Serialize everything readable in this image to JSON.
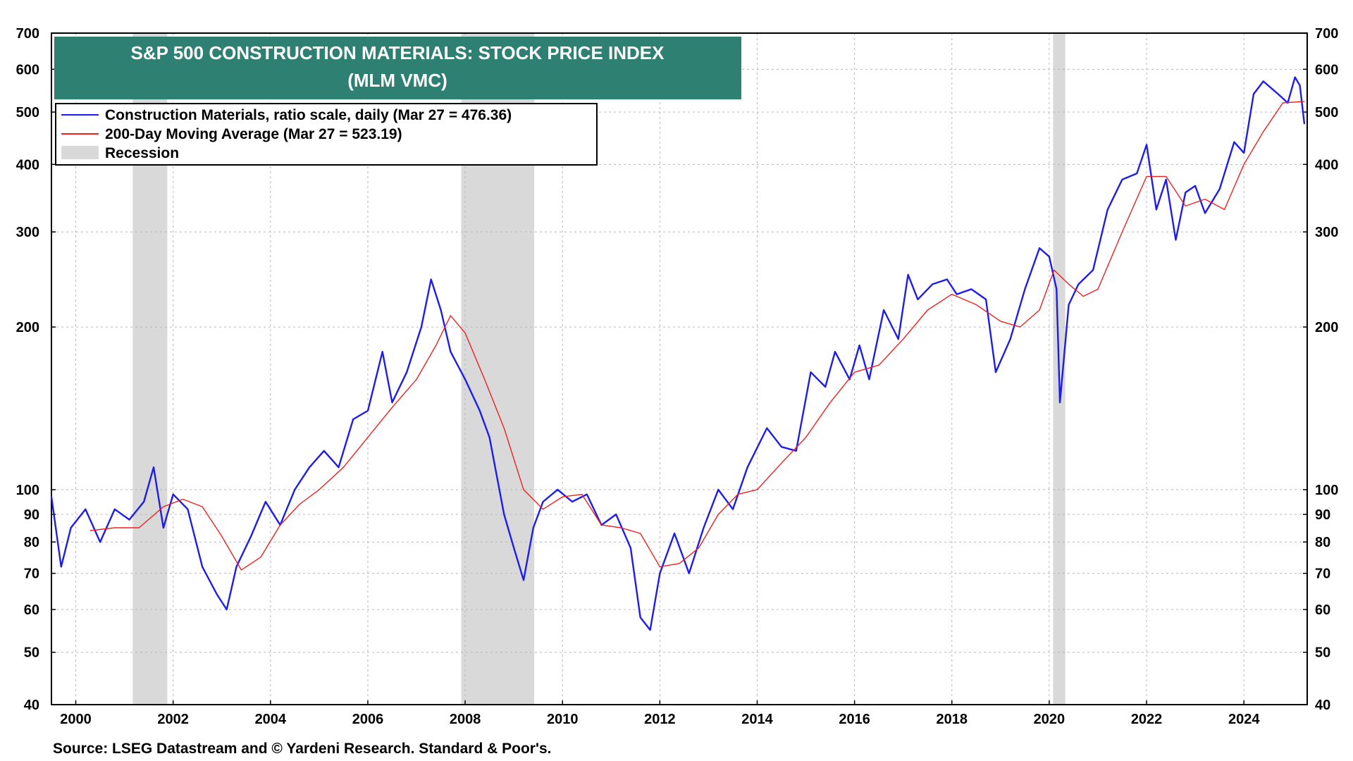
{
  "chart_data": {
    "type": "line",
    "title_line1": "S&P 500 CONSTRUCTION MATERIALS: STOCK PRICE INDEX",
    "title_line2": "(MLM VMC)",
    "title_bg_color": "#2e8072",
    "scale": "log",
    "ylim": [
      40,
      700
    ],
    "xlim": [
      1999.5,
      2025.3
    ],
    "y_ticks": [
      40,
      50,
      60,
      70,
      80,
      90,
      100,
      200,
      300,
      400,
      500,
      600,
      700
    ],
    "x_ticks": [
      2000,
      2002,
      2004,
      2006,
      2008,
      2010,
      2012,
      2014,
      2016,
      2018,
      2020,
      2022,
      2024
    ],
    "grid": true,
    "legend_position": "top-left",
    "legend": [
      {
        "label": "Construction Materials, ratio scale, daily (Mar 27 = 476.36)",
        "color": "#1c1cf0",
        "kind": "line"
      },
      {
        "label": "200-Day Moving Average (Mar 27 = 523.19)",
        "color": "#ee2020",
        "kind": "line"
      },
      {
        "label": "Recession",
        "color": "#d9d9d9",
        "kind": "box"
      }
    ],
    "recessions": [
      [
        2001.17,
        2001.88
      ],
      [
        2007.92,
        2009.42
      ],
      [
        2020.08,
        2020.33
      ]
    ],
    "series": [
      {
        "name": "Construction Materials",
        "color": "#1c1cf0",
        "x": [
          1999.5,
          1999.7,
          1999.9,
          2000.2,
          2000.5,
          2000.8,
          2001.1,
          2001.4,
          2001.6,
          2001.8,
          2002.0,
          2002.3,
          2002.6,
          2002.9,
          2003.1,
          2003.3,
          2003.6,
          2003.9,
          2004.2,
          2004.5,
          2004.8,
          2005.1,
          2005.4,
          2005.7,
          2006.0,
          2006.3,
          2006.5,
          2006.8,
          2007.1,
          2007.3,
          2007.5,
          2007.7,
          2008.0,
          2008.3,
          2008.5,
          2008.8,
          2009.0,
          2009.2,
          2009.4,
          2009.6,
          2009.9,
          2010.2,
          2010.5,
          2010.8,
          2011.1,
          2011.4,
          2011.6,
          2011.8,
          2012.0,
          2012.3,
          2012.6,
          2012.9,
          2013.2,
          2013.5,
          2013.8,
          2014.2,
          2014.5,
          2014.8,
          2015.1,
          2015.4,
          2015.6,
          2015.9,
          2016.1,
          2016.3,
          2016.6,
          2016.9,
          2017.1,
          2017.3,
          2017.6,
          2017.9,
          2018.1,
          2018.4,
          2018.7,
          2018.9,
          2019.2,
          2019.5,
          2019.8,
          2020.0,
          2020.15,
          2020.22,
          2020.4,
          2020.6,
          2020.9,
          2021.2,
          2021.5,
          2021.8,
          2022.0,
          2022.2,
          2022.4,
          2022.6,
          2022.8,
          2023.0,
          2023.2,
          2023.5,
          2023.8,
          2024.0,
          2024.2,
          2024.4,
          2024.7,
          2024.9,
          2025.05,
          2025.15,
          2025.24
        ],
        "values": [
          97,
          72,
          85,
          92,
          80,
          92,
          88,
          95,
          110,
          85,
          98,
          92,
          72,
          64,
          60,
          72,
          82,
          95,
          86,
          100,
          110,
          118,
          110,
          135,
          140,
          180,
          145,
          165,
          200,
          245,
          215,
          180,
          160,
          140,
          125,
          90,
          78,
          68,
          85,
          95,
          100,
          95,
          98,
          86,
          90,
          78,
          58,
          55,
          70,
          83,
          70,
          85,
          100,
          92,
          110,
          130,
          120,
          118,
          165,
          155,
          180,
          160,
          185,
          160,
          215,
          190,
          250,
          225,
          240,
          245,
          230,
          235,
          225,
          165,
          190,
          235,
          280,
          270,
          235,
          145,
          220,
          240,
          255,
          330,
          375,
          385,
          435,
          330,
          375,
          290,
          355,
          365,
          325,
          360,
          440,
          420,
          540,
          570,
          540,
          520,
          580,
          560,
          476.36
        ]
      },
      {
        "name": "200-Day Moving Average",
        "color": "#ee2020",
        "x": [
          2000.3,
          2000.8,
          2001.3,
          2001.8,
          2002.2,
          2002.6,
          2003.0,
          2003.4,
          2003.8,
          2004.2,
          2004.6,
          2005.0,
          2005.5,
          2006.0,
          2006.5,
          2007.0,
          2007.4,
          2007.7,
          2008.0,
          2008.4,
          2008.8,
          2009.2,
          2009.6,
          2010.0,
          2010.4,
          2010.8,
          2011.2,
          2011.6,
          2012.0,
          2012.4,
          2012.8,
          2013.2,
          2013.6,
          2014.0,
          2014.5,
          2015.0,
          2015.5,
          2016.0,
          2016.5,
          2017.0,
          2017.5,
          2018.0,
          2018.5,
          2019.0,
          2019.4,
          2019.8,
          2020.1,
          2020.4,
          2020.7,
          2021.0,
          2021.5,
          2022.0,
          2022.4,
          2022.8,
          2023.2,
          2023.6,
          2024.0,
          2024.4,
          2024.8,
          2025.24
        ],
        "values": [
          84,
          85,
          85,
          93,
          96,
          93,
          82,
          71,
          75,
          86,
          94,
          100,
          110,
          125,
          142,
          160,
          185,
          210,
          195,
          160,
          130,
          100,
          92,
          97,
          98,
          86,
          85,
          83,
          72,
          73,
          78,
          90,
          98,
          100,
          112,
          125,
          145,
          165,
          170,
          190,
          215,
          230,
          220,
          205,
          200,
          215,
          255,
          240,
          228,
          235,
          300,
          380,
          380,
          335,
          345,
          330,
          400,
          460,
          520,
          523.19
        ]
      }
    ],
    "source": "Source: LSEG Datastream and © Yardeni Research. Standard & Poor's."
  }
}
